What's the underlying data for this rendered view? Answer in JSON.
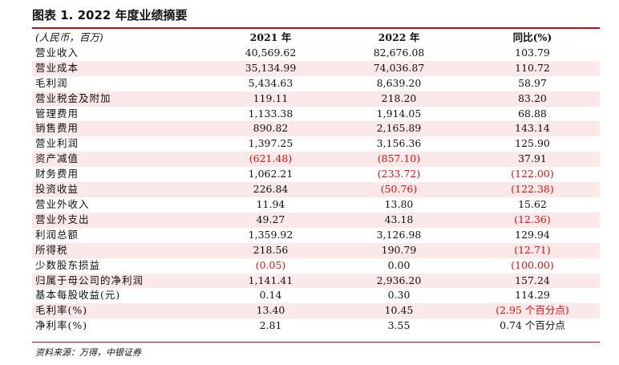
{
  "title": "图表 1. 2022 年度业绩摘要",
  "header": {
    "unit": "(人民币，百万)",
    "col_2021": "2021 年",
    "col_2022": "2022 年",
    "col_yoy": "同比(%)"
  },
  "rows": [
    {
      "label": "营业收入",
      "v2021": "40,569.62",
      "v2022": "82,676.08",
      "yoy": "103.79"
    },
    {
      "label": "营业成本",
      "v2021": "35,134.99",
      "v2022": "74,036.87",
      "yoy": "110.72"
    },
    {
      "label": "毛利润",
      "v2021": "5,434.63",
      "v2022": "8,639.20",
      "yoy": "58.97"
    },
    {
      "label": "营业税金及附加",
      "v2021": "119.11",
      "v2022": "218.20",
      "yoy": "83.20"
    },
    {
      "label": "管理费用",
      "v2021": "1,133.38",
      "v2022": "1,914.05",
      "yoy": "68.88"
    },
    {
      "label": "销售费用",
      "v2021": "890.82",
      "v2022": "2,165.89",
      "yoy": "143.14"
    },
    {
      "label": "营业利润",
      "v2021": "1,397.25",
      "v2022": "3,156.36",
      "yoy": "125.90"
    },
    {
      "label": "资产减值",
      "v2021": "(621.48)",
      "v2022": "(857.10)",
      "yoy": "37.91"
    },
    {
      "label": "财务费用",
      "v2021": "1,062.21",
      "v2022": "(233.72)",
      "yoy": "(122.00)"
    },
    {
      "label": "投资收益",
      "v2021": "226.84",
      "v2022": "(50.76)",
      "yoy": "(122.38)"
    },
    {
      "label": "营业外收入",
      "v2021": "11.94",
      "v2022": "13.80",
      "yoy": "15.62"
    },
    {
      "label": "营业外支出",
      "v2021": "49.27",
      "v2022": "43.18",
      "yoy": "(12.36)"
    },
    {
      "label": "利润总额",
      "v2021": "1,359.92",
      "v2022": "3,126.98",
      "yoy": "129.94"
    },
    {
      "label": "所得税",
      "v2021": "218.56",
      "v2022": "190.79",
      "yoy": "(12.71)"
    },
    {
      "label": "少数股东损益",
      "v2021": "(0.05)",
      "v2022": "0.00",
      "yoy": "(100.00)"
    },
    {
      "label": "归属于母公司的净利润",
      "v2021": "1,141.41",
      "v2022": "2,936.20",
      "yoy": "157.24"
    },
    {
      "label": "基本每股收益(元)",
      "v2021": "0.14",
      "v2022": "0.30",
      "yoy": "114.29"
    },
    {
      "label": "毛利率(%)",
      "v2021": "13.40",
      "v2022": "10.45",
      "yoy": "(2.95 个百分点)"
    },
    {
      "label": "净利率(%)",
      "v2021": "2.81",
      "v2022": "3.55",
      "yoy": "0.74 个百分点"
    }
  ],
  "source": "资料来源：万得，中银证券",
  "colors": {
    "negative": "#e01010",
    "band": "#fbe8e8",
    "rule": "#b5121b"
  }
}
